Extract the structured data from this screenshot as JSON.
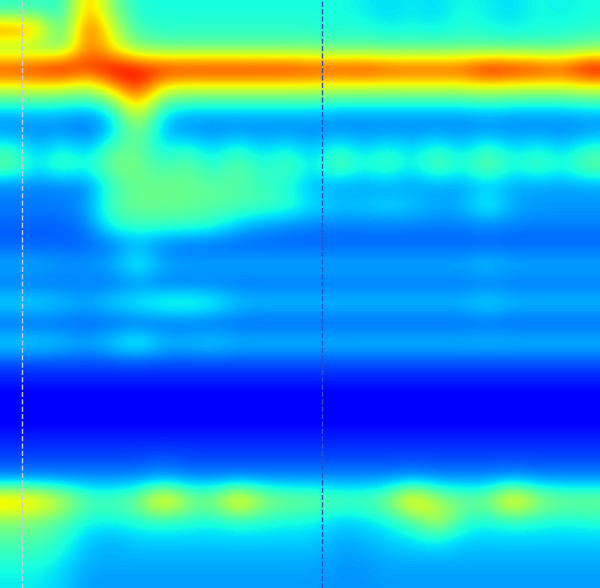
{
  "chart_data": {
    "type": "heatmap",
    "color": "jet",
    "tick_labels": false,
    "grid": false,
    "xlim": [
      0,
      24
    ],
    "ylim": [
      30,
      0
    ],
    "value_range": [
      0,
      1
    ],
    "markers": [
      {
        "x": 0.88,
        "color": "#c8c8d8",
        "line_style": "dashed"
      },
      {
        "x": 12.88,
        "color": "#3050c0",
        "line_style": "dashed"
      }
    ],
    "cells": [
      [
        0.4,
        0.42,
        0.38,
        0.75,
        0.5,
        0.38,
        0.38,
        0.38,
        0.38,
        0.38,
        0.38,
        0.38,
        0.38,
        0.38,
        0.36,
        0.34,
        0.36,
        0.34,
        0.38,
        0.36,
        0.34,
        0.38,
        0.36,
        0.38
      ],
      [
        0.8,
        0.75,
        0.4,
        0.85,
        0.6,
        0.42,
        0.4,
        0.4,
        0.4,
        0.4,
        0.4,
        0.4,
        0.4,
        0.38,
        0.4,
        0.36,
        0.38,
        0.36,
        0.4,
        0.38,
        0.36,
        0.38,
        0.38,
        0.4
      ],
      [
        0.5,
        0.5,
        0.48,
        0.8,
        0.65,
        0.5,
        0.48,
        0.48,
        0.48,
        0.48,
        0.48,
        0.48,
        0.48,
        0.46,
        0.46,
        0.46,
        0.46,
        0.46,
        0.46,
        0.46,
        0.46,
        0.46,
        0.46,
        0.5
      ],
      [
        0.88,
        0.9,
        0.95,
        0.85,
        0.95,
        0.92,
        0.9,
        0.9,
        0.9,
        0.9,
        0.9,
        0.9,
        0.88,
        0.88,
        0.9,
        0.86,
        0.86,
        0.86,
        0.86,
        0.95,
        0.92,
        0.9,
        0.86,
        0.97
      ],
      [
        0.6,
        0.62,
        0.6,
        0.55,
        0.7,
        0.88,
        0.62,
        0.6,
        0.6,
        0.6,
        0.6,
        0.6,
        0.6,
        0.58,
        0.58,
        0.58,
        0.58,
        0.58,
        0.58,
        0.6,
        0.58,
        0.58,
        0.58,
        0.6
      ],
      [
        0.35,
        0.35,
        0.35,
        0.32,
        0.4,
        0.7,
        0.38,
        0.35,
        0.35,
        0.35,
        0.35,
        0.35,
        0.35,
        0.33,
        0.33,
        0.33,
        0.33,
        0.33,
        0.33,
        0.35,
        0.33,
        0.33,
        0.33,
        0.35
      ],
      [
        0.25,
        0.25,
        0.25,
        0.22,
        0.3,
        0.55,
        0.3,
        0.25,
        0.25,
        0.25,
        0.25,
        0.25,
        0.25,
        0.25,
        0.25,
        0.25,
        0.25,
        0.25,
        0.25,
        0.25,
        0.25,
        0.25,
        0.25,
        0.25
      ],
      [
        0.4,
        0.3,
        0.38,
        0.3,
        0.45,
        0.48,
        0.35,
        0.4,
        0.32,
        0.4,
        0.32,
        0.38,
        0.3,
        0.4,
        0.32,
        0.38,
        0.33,
        0.4,
        0.32,
        0.42,
        0.33,
        0.38,
        0.32,
        0.4
      ],
      [
        0.48,
        0.35,
        0.45,
        0.38,
        0.5,
        0.5,
        0.42,
        0.48,
        0.38,
        0.48,
        0.38,
        0.45,
        0.35,
        0.48,
        0.38,
        0.45,
        0.35,
        0.48,
        0.38,
        0.5,
        0.38,
        0.45,
        0.38,
        0.48
      ],
      [
        0.25,
        0.25,
        0.25,
        0.25,
        0.42,
        0.48,
        0.48,
        0.48,
        0.46,
        0.45,
        0.42,
        0.38,
        0.3,
        0.28,
        0.28,
        0.28,
        0.28,
        0.28,
        0.28,
        0.32,
        0.28,
        0.28,
        0.28,
        0.28
      ],
      [
        0.25,
        0.25,
        0.25,
        0.28,
        0.45,
        0.48,
        0.48,
        0.47,
        0.46,
        0.45,
        0.43,
        0.42,
        0.35,
        0.33,
        0.33,
        0.35,
        0.33,
        0.3,
        0.3,
        0.4,
        0.3,
        0.28,
        0.28,
        0.28
      ],
      [
        0.22,
        0.22,
        0.22,
        0.25,
        0.4,
        0.42,
        0.42,
        0.42,
        0.4,
        0.32,
        0.28,
        0.26,
        0.25,
        0.25,
        0.25,
        0.25,
        0.25,
        0.25,
        0.25,
        0.26,
        0.25,
        0.25,
        0.25,
        0.25
      ],
      [
        0.22,
        0.22,
        0.22,
        0.22,
        0.24,
        0.3,
        0.24,
        0.22,
        0.22,
        0.22,
        0.22,
        0.22,
        0.22,
        0.22,
        0.22,
        0.22,
        0.22,
        0.22,
        0.22,
        0.22,
        0.22,
        0.22,
        0.22,
        0.22
      ],
      [
        0.3,
        0.3,
        0.28,
        0.28,
        0.3,
        0.4,
        0.3,
        0.3,
        0.3,
        0.3,
        0.3,
        0.3,
        0.3,
        0.3,
        0.3,
        0.3,
        0.3,
        0.3,
        0.3,
        0.33,
        0.3,
        0.3,
        0.3,
        0.3
      ],
      [
        0.24,
        0.24,
        0.24,
        0.24,
        0.24,
        0.26,
        0.24,
        0.24,
        0.24,
        0.24,
        0.24,
        0.24,
        0.24,
        0.24,
        0.24,
        0.24,
        0.24,
        0.24,
        0.24,
        0.24,
        0.24,
        0.24,
        0.24,
        0.24
      ],
      [
        0.35,
        0.35,
        0.33,
        0.3,
        0.35,
        0.38,
        0.42,
        0.43,
        0.4,
        0.33,
        0.32,
        0.32,
        0.32,
        0.32,
        0.32,
        0.32,
        0.32,
        0.32,
        0.32,
        0.36,
        0.32,
        0.32,
        0.32,
        0.32
      ],
      [
        0.22,
        0.22,
        0.22,
        0.22,
        0.22,
        0.22,
        0.22,
        0.22,
        0.22,
        0.22,
        0.22,
        0.22,
        0.22,
        0.22,
        0.22,
        0.22,
        0.22,
        0.22,
        0.22,
        0.22,
        0.22,
        0.22,
        0.22,
        0.22
      ],
      [
        0.35,
        0.35,
        0.33,
        0.3,
        0.35,
        0.42,
        0.33,
        0.33,
        0.35,
        0.32,
        0.32,
        0.32,
        0.32,
        0.32,
        0.32,
        0.32,
        0.32,
        0.32,
        0.32,
        0.33,
        0.32,
        0.32,
        0.32,
        0.32
      ],
      [
        0.2,
        0.2,
        0.2,
        0.2,
        0.2,
        0.2,
        0.2,
        0.2,
        0.2,
        0.2,
        0.2,
        0.2,
        0.2,
        0.2,
        0.2,
        0.2,
        0.2,
        0.2,
        0.2,
        0.2,
        0.2,
        0.2,
        0.2,
        0.2
      ],
      [
        0.15,
        0.15,
        0.15,
        0.15,
        0.15,
        0.15,
        0.15,
        0.15,
        0.15,
        0.15,
        0.15,
        0.15,
        0.15,
        0.15,
        0.15,
        0.15,
        0.15,
        0.15,
        0.15,
        0.15,
        0.15,
        0.15,
        0.15,
        0.15
      ],
      [
        0.1,
        0.1,
        0.1,
        0.1,
        0.1,
        0.1,
        0.1,
        0.1,
        0.1,
        0.1,
        0.1,
        0.1,
        0.1,
        0.1,
        0.1,
        0.1,
        0.1,
        0.1,
        0.1,
        0.1,
        0.1,
        0.1,
        0.1,
        0.1
      ],
      [
        0.12,
        0.12,
        0.12,
        0.12,
        0.12,
        0.12,
        0.12,
        0.12,
        0.12,
        0.12,
        0.12,
        0.12,
        0.12,
        0.12,
        0.12,
        0.12,
        0.12,
        0.12,
        0.12,
        0.12,
        0.12,
        0.12,
        0.12,
        0.12
      ],
      [
        0.16,
        0.16,
        0.16,
        0.16,
        0.16,
        0.16,
        0.16,
        0.16,
        0.16,
        0.16,
        0.16,
        0.16,
        0.16,
        0.16,
        0.16,
        0.16,
        0.16,
        0.16,
        0.16,
        0.16,
        0.16,
        0.16,
        0.16,
        0.16
      ],
      [
        0.2,
        0.2,
        0.2,
        0.2,
        0.2,
        0.2,
        0.22,
        0.2,
        0.2,
        0.2,
        0.2,
        0.2,
        0.2,
        0.2,
        0.2,
        0.2,
        0.2,
        0.2,
        0.2,
        0.2,
        0.2,
        0.2,
        0.2,
        0.2
      ],
      [
        0.28,
        0.28,
        0.28,
        0.28,
        0.28,
        0.28,
        0.3,
        0.28,
        0.28,
        0.28,
        0.28,
        0.28,
        0.28,
        0.28,
        0.28,
        0.28,
        0.3,
        0.28,
        0.28,
        0.28,
        0.3,
        0.28,
        0.28,
        0.28
      ],
      [
        0.75,
        0.72,
        0.6,
        0.45,
        0.45,
        0.5,
        0.75,
        0.55,
        0.5,
        0.75,
        0.55,
        0.5,
        0.5,
        0.45,
        0.45,
        0.5,
        0.75,
        0.55,
        0.5,
        0.5,
        0.75,
        0.55,
        0.5,
        0.5
      ],
      [
        0.52,
        0.5,
        0.45,
        0.38,
        0.38,
        0.4,
        0.42,
        0.4,
        0.38,
        0.42,
        0.4,
        0.38,
        0.38,
        0.33,
        0.35,
        0.38,
        0.45,
        0.6,
        0.42,
        0.38,
        0.42,
        0.4,
        0.38,
        0.4
      ],
      [
        0.45,
        0.45,
        0.4,
        0.32,
        0.3,
        0.33,
        0.33,
        0.33,
        0.33,
        0.33,
        0.33,
        0.33,
        0.33,
        0.3,
        0.3,
        0.33,
        0.35,
        0.38,
        0.33,
        0.33,
        0.33,
        0.33,
        0.33,
        0.33
      ],
      [
        0.4,
        0.4,
        0.36,
        0.3,
        0.3,
        0.3,
        0.3,
        0.3,
        0.3,
        0.3,
        0.3,
        0.3,
        0.3,
        0.28,
        0.28,
        0.3,
        0.3,
        0.3,
        0.3,
        0.3,
        0.3,
        0.3,
        0.3,
        0.3
      ],
      [
        0.36,
        0.36,
        0.33,
        0.28,
        0.28,
        0.28,
        0.28,
        0.28,
        0.28,
        0.28,
        0.28,
        0.28,
        0.28,
        0.27,
        0.27,
        0.28,
        0.28,
        0.28,
        0.28,
        0.28,
        0.28,
        0.28,
        0.28,
        0.28
      ]
    ]
  }
}
